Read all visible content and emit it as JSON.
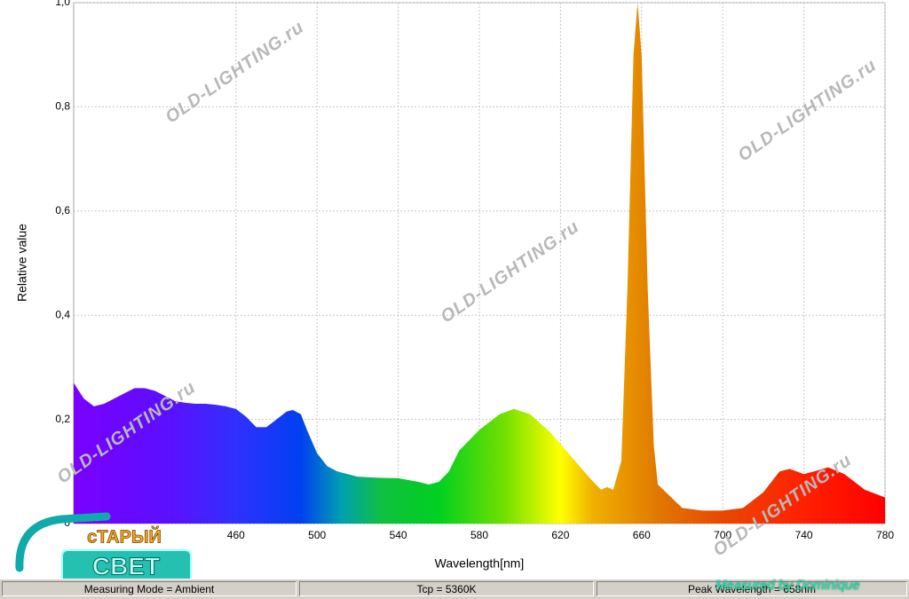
{
  "chart_data": {
    "type": "area",
    "xlabel": "Wavelength[nm]",
    "ylabel": "Relative value",
    "x": [
      380,
      385,
      390,
      395,
      400,
      405,
      410,
      415,
      420,
      425,
      430,
      435,
      440,
      445,
      450,
      455,
      460,
      465,
      470,
      475,
      480,
      485,
      488,
      492,
      495,
      500,
      505,
      510,
      520,
      530,
      540,
      550,
      555,
      560,
      565,
      570,
      580,
      590,
      597,
      605,
      615,
      625,
      635,
      640,
      643,
      646,
      650,
      653,
      656,
      658,
      660,
      663,
      666,
      668,
      672,
      680,
      690,
      700,
      710,
      720,
      728,
      733,
      740,
      745,
      752,
      760,
      770,
      780
    ],
    "values": [
      0.27,
      0.24,
      0.225,
      0.23,
      0.24,
      0.25,
      0.26,
      0.26,
      0.255,
      0.245,
      0.235,
      0.232,
      0.23,
      0.23,
      0.228,
      0.225,
      0.22,
      0.205,
      0.185,
      0.185,
      0.2,
      0.215,
      0.218,
      0.21,
      0.18,
      0.135,
      0.11,
      0.1,
      0.09,
      0.088,
      0.087,
      0.08,
      0.075,
      0.08,
      0.1,
      0.14,
      0.18,
      0.21,
      0.22,
      0.21,
      0.175,
      0.13,
      0.085,
      0.065,
      0.07,
      0.065,
      0.12,
      0.45,
      0.9,
      1.0,
      0.9,
      0.45,
      0.15,
      0.075,
      0.06,
      0.03,
      0.025,
      0.025,
      0.03,
      0.06,
      0.1,
      0.105,
      0.095,
      0.1,
      0.108,
      0.095,
      0.065,
      0.05
    ],
    "xlim": [
      380,
      780
    ],
    "ylim": [
      0,
      1
    ],
    "xticks": [
      460,
      500,
      540,
      580,
      620,
      660,
      700,
      740,
      780
    ],
    "yticks": [
      0,
      {
        "value": 0.2,
        "label": "0,2"
      },
      {
        "value": 0.4,
        "label": "0,4"
      },
      {
        "value": 0.6,
        "label": "0,6"
      },
      {
        "value": 0.8,
        "label": "0,8"
      },
      {
        "value": 1,
        "label": "1,0"
      }
    ],
    "grid": true
  },
  "status_bar": [
    "Measuring Mode = Ambient",
    "Tcp = 5360K",
    "Peak Wavelength = 658nm"
  ],
  "watermark": "OLD-LIGHTING.ru",
  "credit": "Measured by Dominique",
  "logo": [
    "сТАРЫЙ",
    "СВЕТ"
  ]
}
